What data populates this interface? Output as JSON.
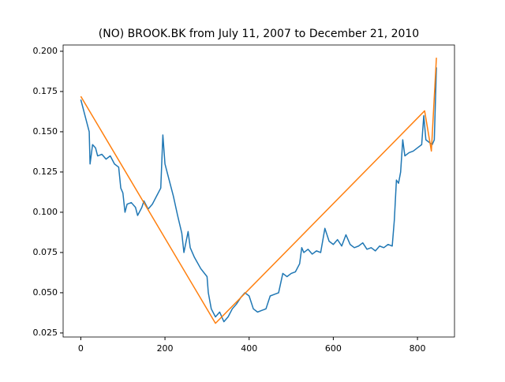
{
  "chart_data": {
    "type": "line",
    "title": "(NO) BROOK.BK from July 11, 2007 to December 21, 2010",
    "xlim": [
      -42,
      888
    ],
    "ylim": [
      0.0225,
      0.2039
    ],
    "xticks": [
      0,
      200,
      400,
      600,
      800
    ],
    "yticks": [
      0.025,
      {
        "value": 0.05,
        "label": "0.050"
      },
      0.075,
      {
        "value": 0.1,
        "label": "0.100"
      },
      0.125,
      {
        "value": 0.15,
        "label": "0.150"
      },
      0.175,
      {
        "value": 0.2,
        "label": "0.200"
      }
    ],
    "series": [
      {
        "color": "#1f77b4",
        "x": [
          0,
          5,
          10,
          20,
          22,
          28,
          35,
          40,
          50,
          60,
          70,
          80,
          90,
          95,
          100,
          105,
          110,
          120,
          130,
          135,
          145,
          150,
          160,
          170,
          180,
          190,
          195,
          200,
          210,
          220,
          230,
          240,
          245,
          255,
          260,
          270,
          285,
          300,
          303,
          310,
          320,
          330,
          340,
          350,
          360,
          370,
          380,
          390,
          400,
          410,
          420,
          430,
          440,
          450,
          460,
          470,
          480,
          490,
          500,
          510,
          520,
          525,
          530,
          540,
          550,
          560,
          570,
          580,
          590,
          600,
          610,
          620,
          630,
          640,
          650,
          660,
          670,
          680,
          690,
          700,
          710,
          720,
          730,
          740,
          745,
          750,
          755,
          760,
          765,
          770,
          780,
          790,
          800,
          810,
          815,
          820,
          830,
          835,
          840,
          845
        ],
        "values": [
          0.17,
          0.165,
          0.16,
          0.15,
          0.13,
          0.142,
          0.14,
          0.135,
          0.136,
          0.133,
          0.135,
          0.13,
          0.128,
          0.115,
          0.112,
          0.1,
          0.105,
          0.106,
          0.103,
          0.098,
          0.103,
          0.107,
          0.102,
          0.105,
          0.11,
          0.115,
          0.148,
          0.13,
          0.12,
          0.11,
          0.098,
          0.087,
          0.075,
          0.088,
          0.078,
          0.072,
          0.065,
          0.06,
          0.05,
          0.04,
          0.035,
          0.038,
          0.032,
          0.035,
          0.04,
          0.043,
          0.047,
          0.05,
          0.048,
          0.04,
          0.038,
          0.039,
          0.04,
          0.048,
          0.049,
          0.05,
          0.062,
          0.06,
          0.062,
          0.063,
          0.068,
          0.078,
          0.075,
          0.077,
          0.074,
          0.076,
          0.075,
          0.09,
          0.082,
          0.08,
          0.083,
          0.079,
          0.086,
          0.08,
          0.078,
          0.079,
          0.081,
          0.077,
          0.078,
          0.076,
          0.079,
          0.078,
          0.08,
          0.079,
          0.095,
          0.12,
          0.118,
          0.125,
          0.145,
          0.135,
          0.137,
          0.138,
          0.14,
          0.142,
          0.16,
          0.145,
          0.143,
          0.142,
          0.145,
          0.19
        ]
      },
      {
        "color": "#ff7f0e",
        "x": [
          0,
          320,
          817,
          833,
          845
        ],
        "values": [
          0.172,
          0.031,
          0.163,
          0.138,
          0.196
        ]
      }
    ]
  }
}
